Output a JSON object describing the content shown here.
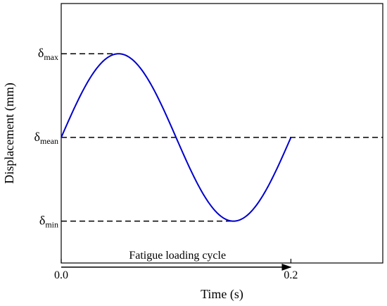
{
  "chart_data": {
    "type": "line",
    "title": "",
    "xlabel": "Time (s)",
    "ylabel": "Displacement (mm)",
    "xlim": [
      0,
      0.28
    ],
    "ylim": [
      -1.5,
      1.6
    ],
    "xticks": [
      {
        "value": 0.0,
        "label": "0.0"
      },
      {
        "value": 0.2,
        "label": "0.2"
      }
    ],
    "grid": false,
    "series": [
      {
        "color": "#0000cc",
        "style": "sine wave, one full cycle",
        "x_start": 0.0,
        "x_end": 0.2,
        "mean": 0,
        "amplitude": 1
      }
    ],
    "reference_lines": [
      {
        "symbol": "δ",
        "subscript": "max",
        "y": 1,
        "x_end": 0.05,
        "style": "dashed"
      },
      {
        "symbol": "δ",
        "subscript": "mean",
        "y": 0,
        "x_end": 0.28,
        "style": "dashed"
      },
      {
        "symbol": "δ",
        "subscript": "min",
        "y": -1,
        "x_end": 0.15,
        "style": "dashed"
      }
    ],
    "annotation": {
      "text": "Fatigue loading cycle",
      "arrow_from": 0.0,
      "arrow_to": 0.2,
      "y": -1.55
    }
  }
}
